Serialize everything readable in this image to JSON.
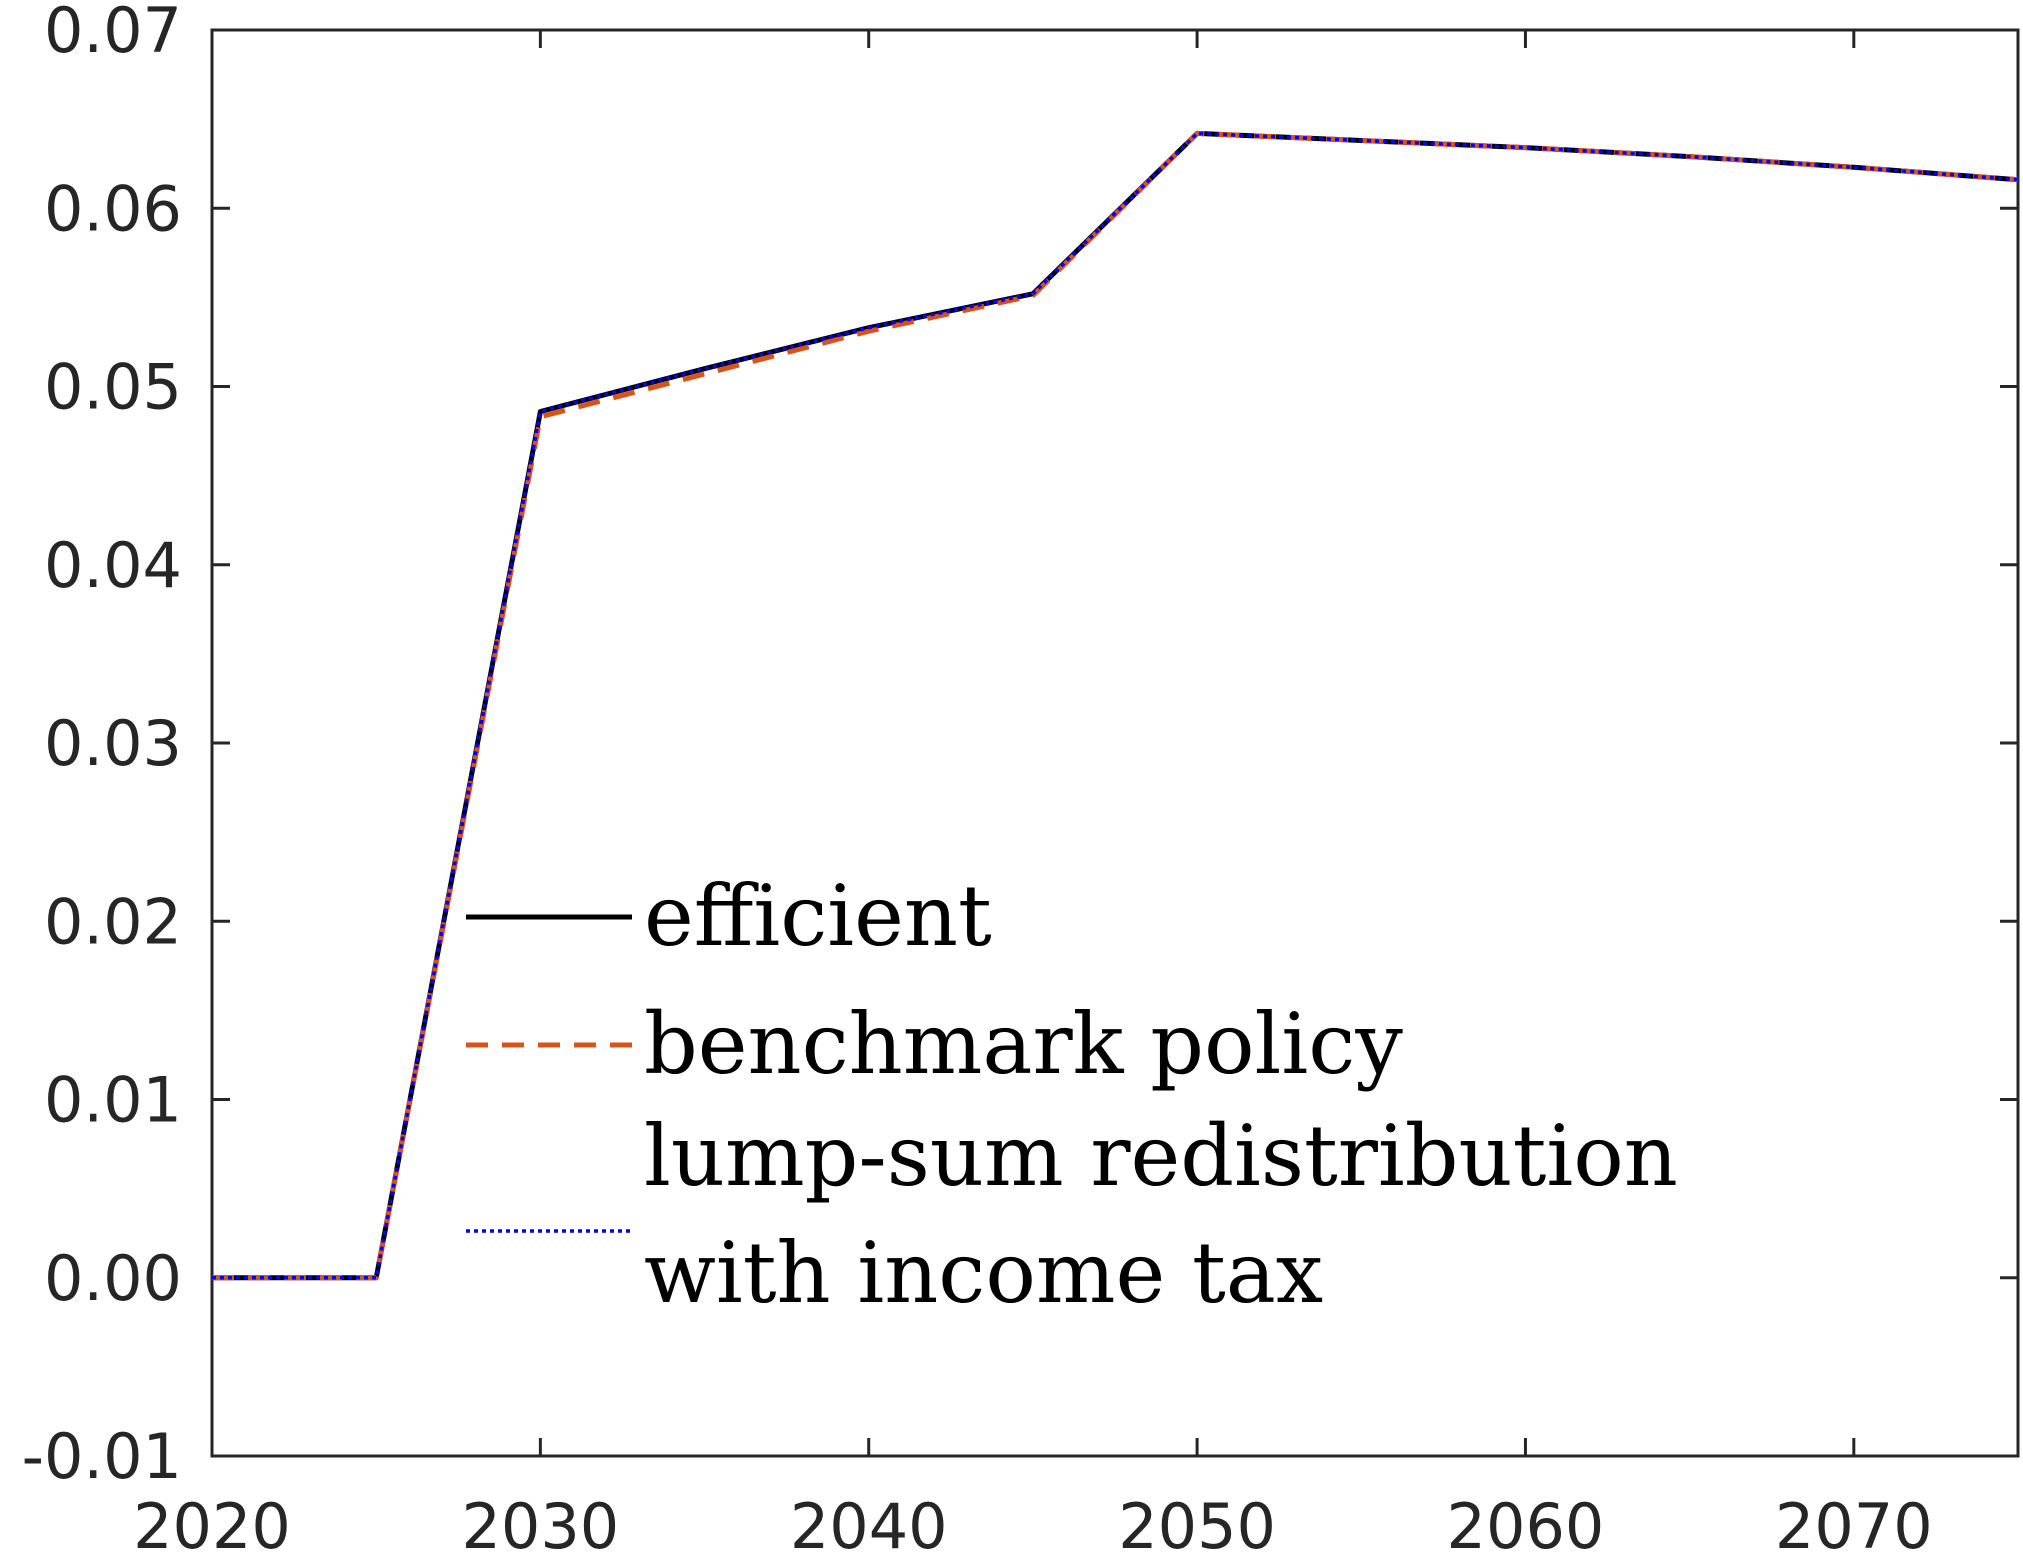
{
  "chart_data": {
    "type": "line",
    "title": "",
    "xlabel": "",
    "ylabel": "",
    "xlim": [
      2020,
      2075
    ],
    "ylim": [
      -0.01,
      0.07
    ],
    "x_ticks": [
      "2020",
      "2030",
      "2040",
      "2050",
      "2060",
      "2070"
    ],
    "y_ticks": [
      "-0.01",
      "0.00",
      "0.01",
      "0.02",
      "0.03",
      "0.04",
      "0.05",
      "0.06",
      "0.07"
    ],
    "grid": false,
    "legend_position": "center-left",
    "x": [
      2020,
      2025,
      2030,
      2035,
      2040,
      2045,
      2050,
      2055,
      2060,
      2065,
      2070,
      2075
    ],
    "series": [
      {
        "name": "efficient",
        "color": "#000000",
        "style": "solid",
        "values": [
          0.0,
          0.0,
          0.0486,
          0.051,
          0.0533,
          0.0552,
          0.0642,
          0.0638,
          0.0634,
          0.0629,
          0.0623,
          0.0616
        ]
      },
      {
        "name": "benchmark policy",
        "color": "#D95319",
        "style": "dashed",
        "values": [
          0.0,
          0.0,
          0.0483,
          0.0507,
          0.0531,
          0.0551,
          0.0642,
          0.0638,
          0.0634,
          0.0629,
          0.0623,
          0.0616
        ]
      },
      {
        "name_lines": [
          "lump-sum redistribution",
          "with income tax"
        ],
        "color": "#0000FF",
        "style": "dotted",
        "values": [
          0.0,
          0.0,
          0.0486,
          0.051,
          0.0533,
          0.0552,
          0.0642,
          0.0638,
          0.0634,
          0.0629,
          0.0623,
          0.0616
        ]
      }
    ]
  }
}
